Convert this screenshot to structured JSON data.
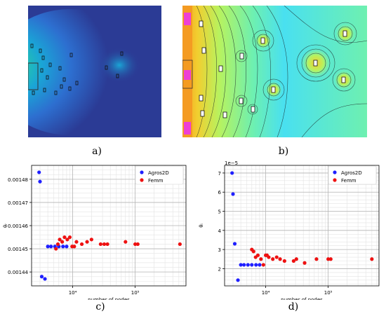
{
  "captions": {
    "a": "a)",
    "b": "b)",
    "c": "c)",
    "d": "d)"
  },
  "field_a": {
    "cmap": [
      "#2b3b95",
      "#2d6fd0",
      "#1aa5d6",
      "#25c9a6",
      "#e4e046"
    ],
    "frame": "#333333"
  },
  "field_b": {
    "cmap": [
      "#49e0f0",
      "#6ef0b0",
      "#b7f25f",
      "#f2ce2f",
      "#f49b22",
      "#ee3fd5"
    ],
    "contour": "#1d2a2a"
  },
  "chart_data": [
    {
      "type": "scatter",
      "xlabel": "number of nodes",
      "ylabel": "θᵣ",
      "xscale": "log",
      "xlim": [
        2200,
        650000
      ],
      "ylim": [
        0.001434,
        0.001486
      ],
      "yticks": [
        "0.00144",
        "0.00145",
        "0.00146",
        "0.00147",
        "0.00148"
      ],
      "ytick_values": [
        0.00144,
        0.00145,
        0.00146,
        0.00147,
        0.00148
      ],
      "xticks": [
        "10⁴",
        "10⁵"
      ],
      "xtick_values": [
        10000,
        100000
      ],
      "legend": "top-right",
      "grid": true,
      "series": [
        {
          "name": "Agros2D",
          "color": "#1f1fff",
          "x": [
            2900,
            3000,
            3200,
            3600,
            4000,
            4500,
            5200,
            6000,
            7000,
            8000
          ],
          "y": [
            0.001483,
            0.001479,
            0.001438,
            0.001437,
            0.001451,
            0.001451,
            0.001451,
            0.001451,
            0.001451,
            0.001451
          ]
        },
        {
          "name": "Femm",
          "color": "#ee1111",
          "x": [
            5400,
            5800,
            6200,
            6800,
            7400,
            8200,
            9000,
            9800,
            10600,
            11500,
            14000,
            17000,
            20000,
            28000,
            32000,
            36000,
            70000,
            100000,
            110000,
            520000
          ],
          "y": [
            0.00145,
            0.001452,
            0.001454,
            0.001453,
            0.001455,
            0.001454,
            0.001455,
            0.001451,
            0.001451,
            0.001453,
            0.001452,
            0.001453,
            0.001454,
            0.001452,
            0.001452,
            0.001452,
            0.001453,
            0.001452,
            0.001452,
            0.001452
          ]
        }
      ]
    },
    {
      "type": "scatter",
      "xlabel": "number of nodes",
      "ylabel": "θᵢ",
      "xscale": "log",
      "xlim": [
        2200,
        650000
      ],
      "ylim": [
        1.1e-05,
        7.4e-05
      ],
      "offset_label": "1e−5",
      "yticks": [
        "2",
        "3",
        "4",
        "5",
        "6",
        "7"
      ],
      "ytick_values": [
        2e-05,
        3e-05,
        4e-05,
        5e-05,
        6e-05,
        7e-05
      ],
      "xticks": [
        "10⁴",
        "10⁵"
      ],
      "xtick_values": [
        10000,
        100000
      ],
      "legend": "top-right",
      "grid": true,
      "series": [
        {
          "name": "Agros2D",
          "color": "#1f1fff",
          "x": [
            2900,
            3000,
            3200,
            3600,
            4000,
            4500,
            5200,
            6000,
            7000,
            8000
          ],
          "y": [
            7e-05,
            5.9e-05,
            3.3e-05,
            1.4e-05,
            2.2e-05,
            2.2e-05,
            2.2e-05,
            2.2e-05,
            2.2e-05,
            2.2e-05
          ],
          "order": "plot"
        },
        {
          "name": "Femm",
          "color": "#ee1111",
          "x": [
            6000,
            6400,
            6900,
            7500,
            8400,
            9200,
            10000,
            10500,
            11200,
            13000,
            15000,
            17000,
            20000,
            28000,
            31000,
            42000,
            65000,
            100000,
            110000,
            500000
          ],
          "y": [
            3e-05,
            2.9e-05,
            2.6e-05,
            2.7e-05,
            2.5e-05,
            2.2e-05,
            2.7e-05,
            2.7e-05,
            2.6e-05,
            2.5e-05,
            2.6e-05,
            2.5e-05,
            2.4e-05,
            2.4e-05,
            2.5e-05,
            2.3e-05,
            2.5e-05,
            2.5e-05,
            2.5e-05,
            2.5e-05
          ]
        }
      ]
    }
  ]
}
